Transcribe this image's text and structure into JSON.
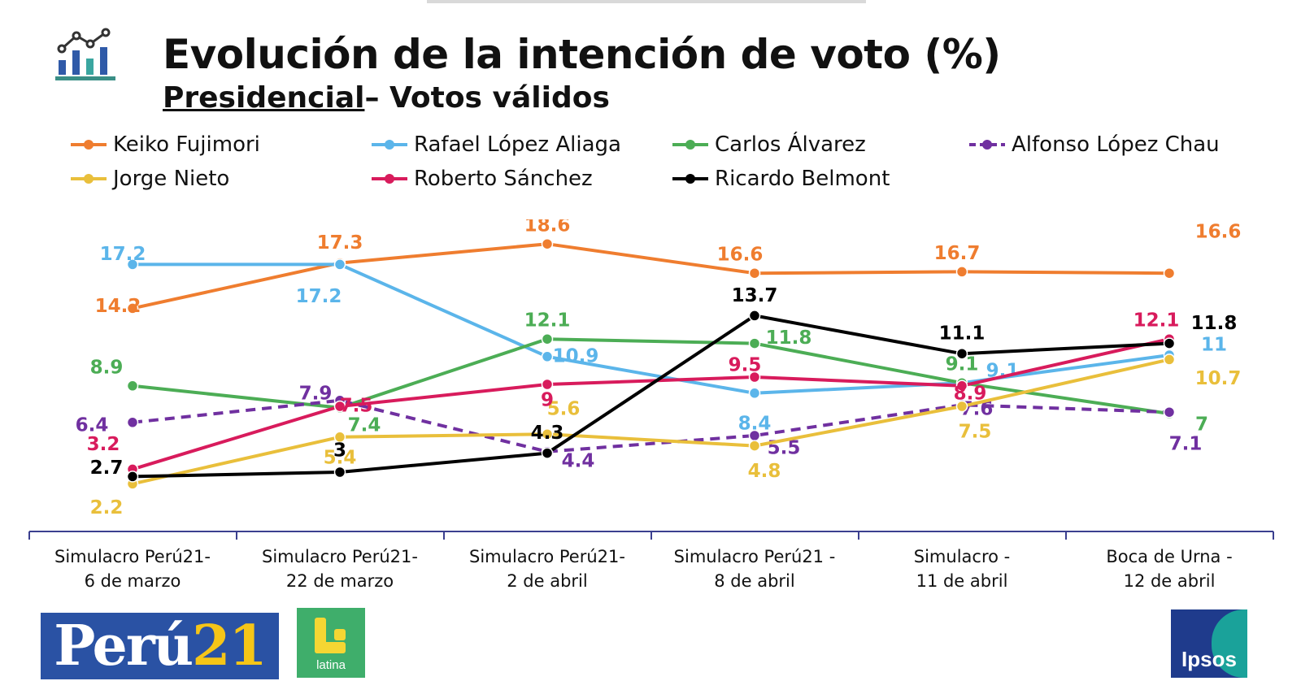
{
  "header": {
    "title": "Evolución de la intención de voto (%)",
    "subtitle_underlined": "Presidencial",
    "subtitle_rest": "– Votos válidos",
    "icon": "chart-growth-icon"
  },
  "logos": {
    "peru21_part1": "Perú",
    "peru21_part2": "21",
    "latina": "latina",
    "ipsos": "Ipsos"
  },
  "chart_data": {
    "type": "line",
    "title": "Evolución de la intención de voto (%)",
    "subtitle": "Presidencial– Votos válidos",
    "categories": [
      [
        "Simulacro Perú21-",
        "6 de marzo"
      ],
      [
        "Simulacro Perú21-",
        "22 de marzo"
      ],
      [
        "Simulacro Perú21-",
        "2 de abril"
      ],
      [
        "Simulacro Perú21 -",
        "8 de abril"
      ],
      [
        "Simulacro -",
        "11 de abril"
      ],
      [
        "Boca de Urna -",
        "12 de abril"
      ]
    ],
    "ylim": [
      0,
      20
    ],
    "grid": false,
    "legend_position": "top",
    "series": [
      {
        "name": "Keiko Fujimori",
        "color": "#ef7d2f",
        "dashed": false,
        "values": [
          14.2,
          17.3,
          18.6,
          16.6,
          16.7,
          16.6
        ],
        "labels": [
          "14.2",
          "17.3",
          "18.6",
          "16.6",
          "16.7",
          "16.6"
        ]
      },
      {
        "name": "Rafael López Aliaga",
        "color": "#5bb5ea",
        "dashed": false,
        "values": [
          17.2,
          17.2,
          10.9,
          8.4,
          9.1,
          11
        ],
        "labels": [
          "17.2",
          "17.2",
          "10.9",
          "8.4",
          "9.1",
          "11"
        ]
      },
      {
        "name": "Carlos Álvarez",
        "color": "#4cad55",
        "dashed": false,
        "values": [
          8.9,
          7.4,
          12.1,
          11.8,
          9.1,
          7
        ],
        "labels": [
          "8.9",
          "7.4",
          "12.1",
          "11.8",
          "9.1",
          "7"
        ]
      },
      {
        "name": "Alfonso López Chau",
        "color": "#7030a0",
        "dashed": true,
        "values": [
          6.4,
          7.9,
          4.4,
          5.5,
          7.6,
          7.1
        ],
        "labels": [
          "6.4",
          "7.9",
          "4.4",
          "5.5",
          "7.6",
          "7.1"
        ]
      },
      {
        "name": "Jorge Nieto",
        "color": "#e9bf3b",
        "dashed": false,
        "values": [
          2.2,
          5.4,
          5.6,
          4.8,
          7.5,
          10.7
        ],
        "labels": [
          "2.2",
          "5.4",
          "5.6",
          "4.8",
          "7.5",
          "10.7"
        ]
      },
      {
        "name": "Roberto Sánchez",
        "color": "#d81b5c",
        "dashed": false,
        "values": [
          3.2,
          7.5,
          9,
          9.5,
          8.9,
          12.1
        ],
        "labels": [
          "3.2",
          "7.5",
          "9",
          "9.5",
          "8.9",
          "12.1"
        ]
      },
      {
        "name": "Ricardo Belmont",
        "color": "#000000",
        "dashed": false,
        "values": [
          2.7,
          3,
          4.3,
          13.7,
          11.1,
          11.8
        ],
        "labels": [
          "2.7",
          "3",
          "4.3",
          "13.7",
          "11.1",
          "11.8"
        ]
      }
    ]
  }
}
